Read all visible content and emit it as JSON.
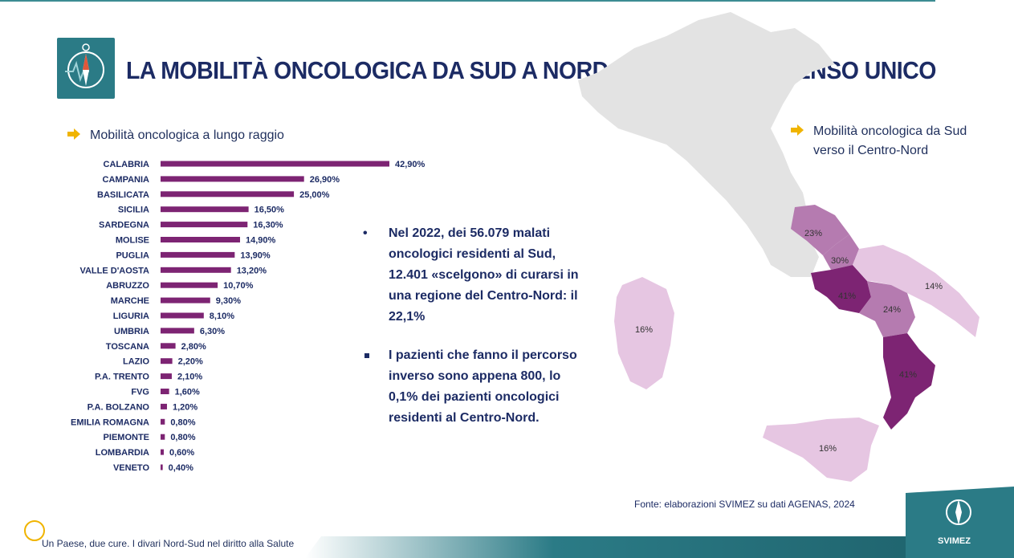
{
  "title": "LA MOBILITÀ ONCOLOGICA DA SUD A NORD: MIGRAZIONI A SENSO UNICO",
  "left_heading": "Mobilità oncologica a lungo raggio",
  "right_heading_line1": "Mobilità oncologica da Sud",
  "right_heading_line2": "verso il Centro-Nord",
  "bullets": [
    "Nel 2022, dei 56.079 malati oncologici residenti al Sud, 12.401 «scelgono» di curarsi in una regione del Centro-Nord: il 22,1%",
    "I pazienti che fanno il percorso inverso sono appena 800, lo 0,1% dei pazienti oncologici residenti al Centro-Nord."
  ],
  "bullet_markers": [
    "•",
    "▪"
  ],
  "map_labels": {
    "abruzzo": "23%",
    "molise": "30%",
    "campania": "41%",
    "puglia": "14%",
    "basilicata": "24%",
    "calabria": "41%",
    "sicilia": "16%",
    "sardegna": "16%"
  },
  "source": "Fonte: elaborazioni SVIMEZ su dati AGENAS, 2024",
  "footer": "Un Paese, due cure. I divari Nord-Sud nel diritto alla Salute",
  "brand": "SVIMEZ",
  "colors": {
    "bar": "#7d2473",
    "title": "#1c2b64",
    "arrow": "#f0b400",
    "teal": "#2b7b86",
    "map_grey": "#e3e3e3",
    "map_dark": "#7d2473",
    "map_mid": "#b57bb0",
    "map_light": "#e6c6e2"
  },
  "icons": [
    "compass-logo-icon",
    "arrow-right-icon",
    "svimez-compass-icon"
  ],
  "chart_data": {
    "type": "bar",
    "orientation": "horizontal",
    "categories": [
      "CALABRIA",
      "CAMPANIA",
      "BASILICATA",
      "SICILIA",
      "SARDEGNA",
      "MOLISE",
      "PUGLIA",
      "VALLE D'AOSTA",
      "ABRUZZO",
      "MARCHE",
      "LIGURIA",
      "UMBRIA",
      "TOSCANA",
      "LAZIO",
      "P.A. TRENTO",
      "FVG",
      "P.A. BOLZANO",
      "EMILIA ROMAGNA",
      "PIEMONTE",
      "LOMBARDIA",
      "VENETO"
    ],
    "values": [
      42.9,
      26.9,
      25.0,
      16.5,
      16.3,
      14.9,
      13.9,
      13.2,
      10.7,
      9.3,
      8.1,
      6.3,
      2.8,
      2.2,
      2.1,
      1.6,
      1.2,
      0.8,
      0.8,
      0.6,
      0.4
    ],
    "value_labels": [
      "42,90%",
      "26,90%",
      "25,00%",
      "16,50%",
      "16,30%",
      "14,90%",
      "13,90%",
      "13,20%",
      "10,70%",
      "9,30%",
      "8,10%",
      "6,30%",
      "2,80%",
      "2,20%",
      "2,10%",
      "1,60%",
      "1,20%",
      "0,80%",
      "0,80%",
      "0,60%",
      "0,40%"
    ],
    "title": "Mobilità oncologica a lungo raggio",
    "xlabel": "",
    "ylabel": "",
    "xlim": [
      0,
      42.9
    ],
    "grid": false
  }
}
